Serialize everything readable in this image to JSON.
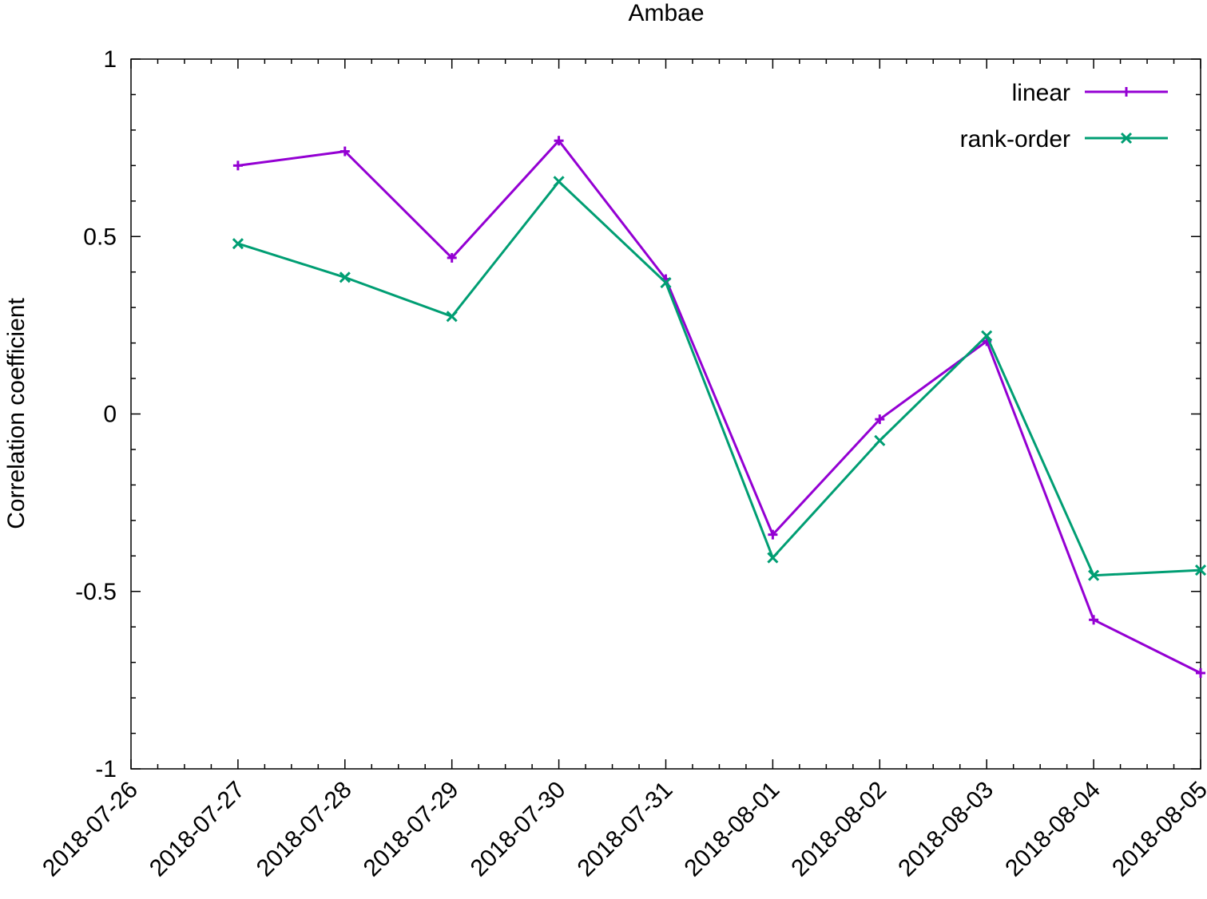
{
  "chart_data": {
    "type": "line",
    "title": "Ambae",
    "xlabel": "",
    "ylabel": "Correlation coefficient",
    "x_ticks": [
      "2018-07-26",
      "2018-07-27",
      "2018-07-28",
      "2018-07-29",
      "2018-07-30",
      "2018-07-31",
      "2018-08-01",
      "2018-08-02",
      "2018-08-03",
      "2018-08-04",
      "2018-08-05"
    ],
    "x": [
      "2018-07-27",
      "2018-07-28",
      "2018-07-29",
      "2018-07-30",
      "2018-07-31",
      "2018-08-01",
      "2018-08-02",
      "2018-08-03",
      "2018-08-04",
      "2018-08-05"
    ],
    "xlim": [
      "2018-07-26",
      "2018-08-05"
    ],
    "ylim": [
      -1,
      1
    ],
    "y_ticks": [
      {
        "value": 1,
        "label": "1"
      },
      {
        "value": 0.5,
        "label": "0.5"
      },
      {
        "value": 0,
        "label": "0"
      },
      {
        "value": -0.5,
        "label": "-0.5"
      },
      {
        "value": -1,
        "label": "-1"
      }
    ],
    "grid": false,
    "legend_position": "top-right",
    "series": [
      {
        "name": "linear",
        "color": "#9400d3",
        "marker": "plus",
        "values": [
          0.7,
          0.74,
          0.44,
          0.77,
          0.38,
          -0.34,
          -0.015,
          0.205,
          -0.58,
          -0.73
        ]
      },
      {
        "name": "rank-order",
        "color": "#009e73",
        "marker": "cross",
        "values": [
          0.48,
          0.385,
          0.275,
          0.655,
          0.37,
          -0.405,
          -0.075,
          0.22,
          -0.455,
          -0.44
        ]
      }
    ]
  }
}
